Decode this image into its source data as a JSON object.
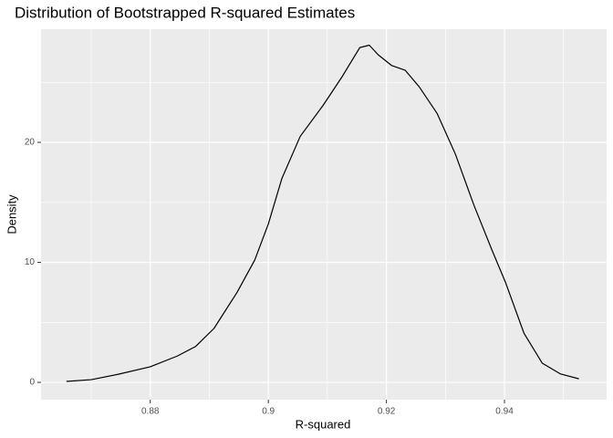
{
  "chart_data": {
    "type": "line",
    "title": "Distribution of Bootstrapped R-squared Estimates",
    "x_label": "R-squared",
    "y_label": "Density",
    "x": [
      0.8658,
      0.87,
      0.8746,
      0.88,
      0.8846,
      0.8877,
      0.8908,
      0.8947,
      0.8977,
      0.9,
      0.9023,
      0.9054,
      0.9093,
      0.9124,
      0.9155,
      0.9171,
      0.9186,
      0.9209,
      0.9232,
      0.9256,
      0.9286,
      0.9317,
      0.9348,
      0.9379,
      0.9402,
      0.9433,
      0.9464,
      0.9495,
      0.9526
    ],
    "series": [
      {
        "color": "#000000",
        "values": [
          0.08,
          0.23,
          0.68,
          1.3,
          2.2,
          3.0,
          4.5,
          7.5,
          10.2,
          13.2,
          17.0,
          20.5,
          23.1,
          25.4,
          27.9,
          28.1,
          27.3,
          26.4,
          26.0,
          24.6,
          22.4,
          19.0,
          14.8,
          11.0,
          8.3,
          4.1,
          1.6,
          0.7,
          0.3
        ]
      }
    ],
    "xlim": [
      0.8615,
      0.9573
    ],
    "ylim": [
      -1.44,
      29.43
    ],
    "xticks": [
      0.88,
      0.9,
      0.92,
      0.94
    ],
    "yticks": [
      0,
      10,
      20
    ],
    "x_minor_ticks": [
      0.87,
      0.89,
      0.91,
      0.93,
      0.95
    ],
    "y_minor_ticks": [
      5,
      15,
      25
    ],
    "grid": true
  }
}
